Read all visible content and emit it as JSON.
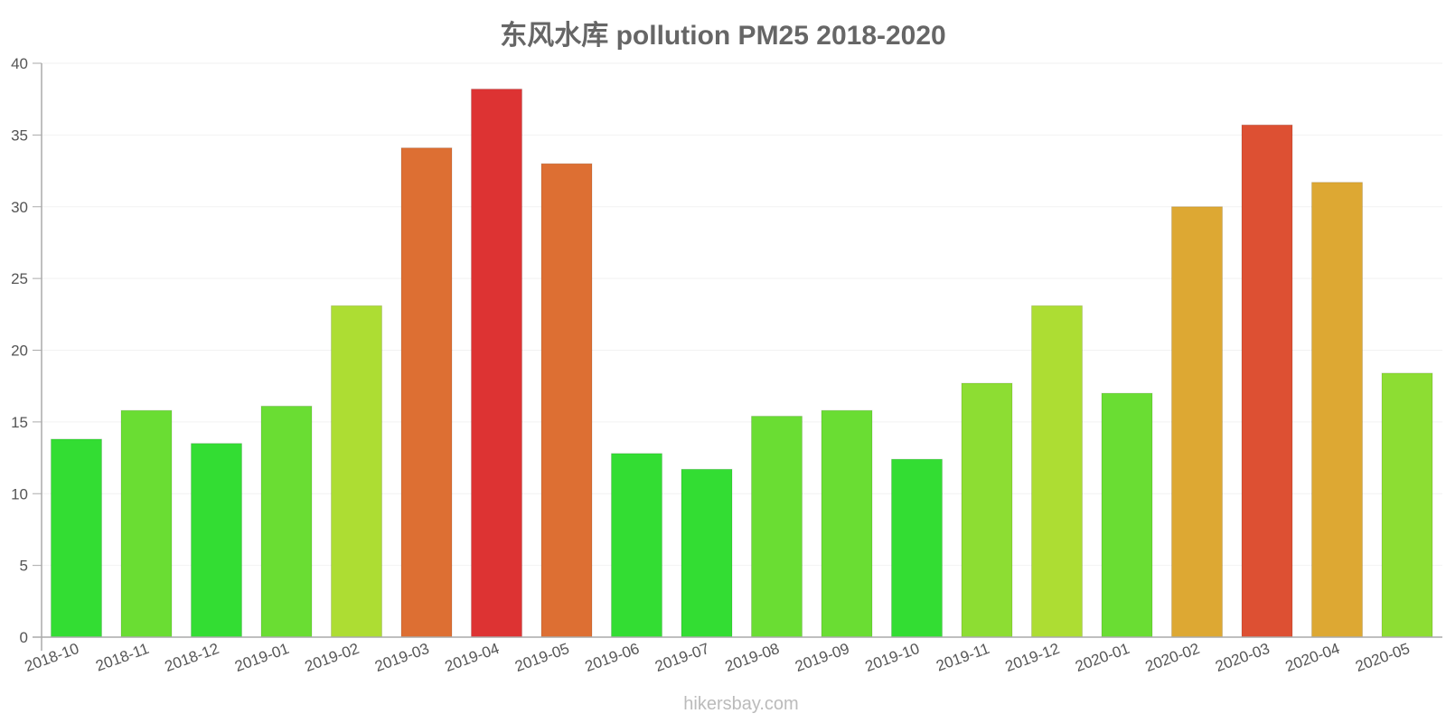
{
  "chart_data": {
    "type": "bar",
    "title": "东风水库 pollution PM25 2018-2020",
    "xlabel": "",
    "ylabel": "",
    "ylim": [
      0,
      40
    ],
    "yticks": [
      0,
      5,
      10,
      15,
      20,
      25,
      30,
      35,
      40
    ],
    "grid": true,
    "legend": null,
    "categories": [
      "2018-10",
      "2018-11",
      "2018-12",
      "2019-01",
      "2019-02",
      "2019-03",
      "2019-04",
      "2019-05",
      "2019-06",
      "2019-07",
      "2019-08",
      "2019-09",
      "2019-10",
      "2019-11",
      "2019-12",
      "2020-01",
      "2020-02",
      "2020-03",
      "2020-04",
      "2020-05"
    ],
    "values": [
      13.8,
      15.8,
      13.5,
      16.1,
      23.1,
      34.1,
      38.2,
      33.0,
      12.8,
      11.7,
      15.4,
      15.8,
      12.4,
      17.7,
      23.1,
      17.0,
      30.0,
      35.7,
      31.7,
      18.4
    ],
    "colors": [
      "#33dd33",
      "#6add33",
      "#33dd33",
      "#6add33",
      "#addd33",
      "#dd6f33",
      "#dd3333",
      "#dd6f33",
      "#33dd33",
      "#33dd33",
      "#6add33",
      "#6add33",
      "#33dd33",
      "#8ddd33",
      "#addd33",
      "#6add33",
      "#dda833",
      "#dd5033",
      "#dda833",
      "#8ddd33"
    ]
  },
  "footer": {
    "source": "hikersbay.com"
  }
}
